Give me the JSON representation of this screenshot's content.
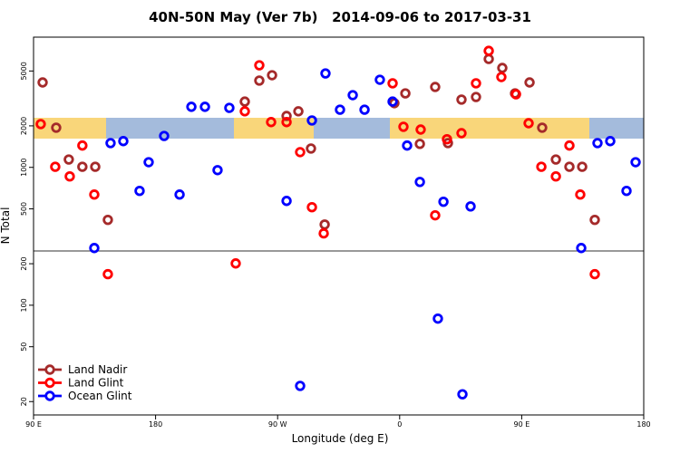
{
  "chart_data": {
    "type": "scatter",
    "title": "40N-50N May (Ver 7b)   2014-09-06 to 2017-03-31",
    "x_label": "Longitude (deg E)",
    "y_label": "N Total",
    "xlim": [
      90,
      540
    ],
    "ylim": [
      16,
      8800
    ],
    "y_scale": "log",
    "grid": false,
    "legend_position": "lower-left",
    "xticks": [
      {
        "value": 90,
        "label": "90 E"
      },
      180,
      {
        "value": 270,
        "label": "90 W"
      },
      {
        "value": 360,
        "label": "0"
      },
      {
        "value": 450,
        "label": "90 E"
      },
      {
        "value": 540,
        "label": "180"
      }
    ],
    "yticks": [
      20,
      50,
      100,
      200,
      500,
      1000,
      2000,
      5000
    ],
    "series": [
      {
        "name": "Land Nadir",
        "color": "#a52a2a",
        "x": [
          96.7,
          106.7,
          116,
          126,
          135.5,
          144.8,
          245.8,
          256.5,
          265.9,
          276.6,
          285.3,
          294.6,
          304.7,
          356.1,
          364.2,
          374.9,
          386.2,
          395.6,
          405.6,
          416.3,
          425.7,
          435.7,
          445.1,
          455.8,
          465.1,
          475.2,
          485.2,
          494.6,
          503.9
        ],
        "values": [
          4130,
          1940,
          1140,
          1010,
          1010,
          416,
          3000,
          4260,
          4660,
          2360,
          2550,
          1370,
          385,
          2920,
          3440,
          1480,
          3830,
          1500,
          3100,
          3240,
          6110,
          5260,
          3440,
          4130,
          1940,
          1140,
          1010,
          1010,
          416
        ]
      },
      {
        "name": "Land Glint",
        "color": "#ff0000",
        "x": [
          95.3,
          106,
          116.7,
          126,
          134.8,
          144.8,
          239.1,
          245.8,
          256.5,
          265.2,
          276.6,
          286.6,
          295.3,
          304,
          354.8,
          362.8,
          375.5,
          386.2,
          394.9,
          405.6,
          416.3,
          425.7,
          435,
          445.8,
          455.1,
          464.5,
          475.2,
          485.2,
          493.2,
          503.9
        ],
        "values": [
          2060,
          1010,
          860,
          1440,
          635,
          168,
          201,
          2550,
          5500,
          2130,
          2130,
          1290,
          514,
          332,
          4070,
          1970,
          1880,
          449,
          1600,
          1770,
          4070,
          7000,
          4520,
          3390,
          2090,
          1010,
          860,
          1440,
          635,
          168
        ]
      },
      {
        "name": "Ocean Glint",
        "color": "#0000ff",
        "x": [
          134.8,
          146.8,
          156.2,
          168.2,
          174.9,
          186.3,
          197.7,
          206.4,
          216.4,
          225.7,
          234.4,
          276.6,
          286.6,
          295.3,
          305.3,
          316,
          325.4,
          334.1,
          345.4,
          354.8,
          365.5,
          374.9,
          388.2,
          392.3,
          406.3,
          412.3,
          493.9,
          505.9,
          515.3,
          527.3,
          534
        ],
        "values": [
          260,
          1500,
          1550,
          675,
          1090,
          1690,
          635,
          2750,
          2750,
          955,
          2700,
          571,
          26,
          2190,
          4800,
          2620,
          3340,
          2620,
          4320,
          3000,
          1440,
          784,
          80,
          563,
          22.6,
          521,
          260,
          1500,
          1550,
          675,
          1090
        ]
      }
    ]
  }
}
